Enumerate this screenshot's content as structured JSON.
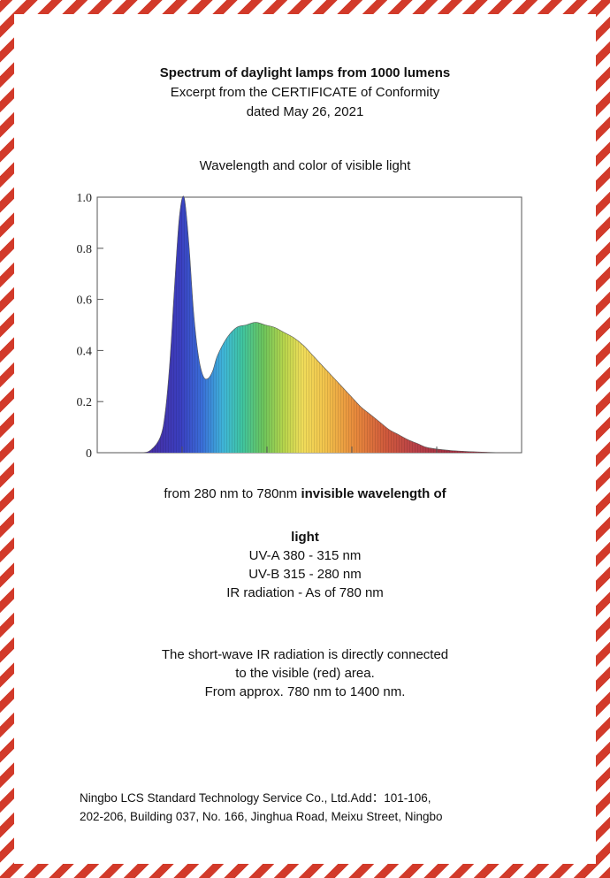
{
  "header": {
    "title": "Spectrum of daylight lamps from 1000 lumens",
    "subtitle": "Excerpt from the CERTIFICATE of Conformity",
    "date": "dated May 26, 2021"
  },
  "chart_title": "Wavelength and color of visible light",
  "chart_data": {
    "type": "area",
    "title": "",
    "xlabel": "",
    "ylabel": "",
    "y_ticks": [
      "1.0",
      "0.8",
      "0.6",
      "0.4",
      "0.2",
      "0"
    ],
    "ylim": [
      0,
      1.0
    ],
    "xlim": [
      380,
      780
    ],
    "x": [
      380,
      400,
      410,
      420,
      425,
      430,
      435,
      440,
      445,
      450,
      455,
      460,
      465,
      470,
      475,
      480,
      490,
      500,
      510,
      520,
      530,
      540,
      550,
      560,
      570,
      580,
      590,
      600,
      610,
      620,
      630,
      640,
      650,
      660,
      670,
      680,
      690,
      700,
      720,
      740,
      760,
      780
    ],
    "values": [
      0.0,
      0.0,
      0.01,
      0.06,
      0.15,
      0.35,
      0.65,
      0.92,
      1.0,
      0.82,
      0.55,
      0.38,
      0.3,
      0.29,
      0.32,
      0.38,
      0.45,
      0.49,
      0.5,
      0.51,
      0.5,
      0.49,
      0.47,
      0.45,
      0.42,
      0.38,
      0.34,
      0.3,
      0.26,
      0.22,
      0.18,
      0.15,
      0.12,
      0.09,
      0.07,
      0.05,
      0.035,
      0.02,
      0.01,
      0.005,
      0.002,
      0.0
    ],
    "grid": false
  },
  "text": {
    "range_pre": "from 280 nm to 780nm ",
    "range_bold1": "invisible wavelength of",
    "range_bold2": "light",
    "uva": "UV-A 380 - 315 nm",
    "uvb": "UV-B 315 - 280 nm",
    "ir": "IR radiation  - As of 780 nm",
    "ir_note1": "The short-wave IR radiation is directly connected",
    "ir_note2": "to the visible (red) area.",
    "ir_note3": "From approx. 780 nm to 1400 nm.",
    "footer1": "Ningbo LCS Standard Technology Service Co., Ltd.Add：101-106,",
    "footer2": "202-206, Building 037, No. 166, Jinghua Road, Meixu Street, Ningbo"
  }
}
